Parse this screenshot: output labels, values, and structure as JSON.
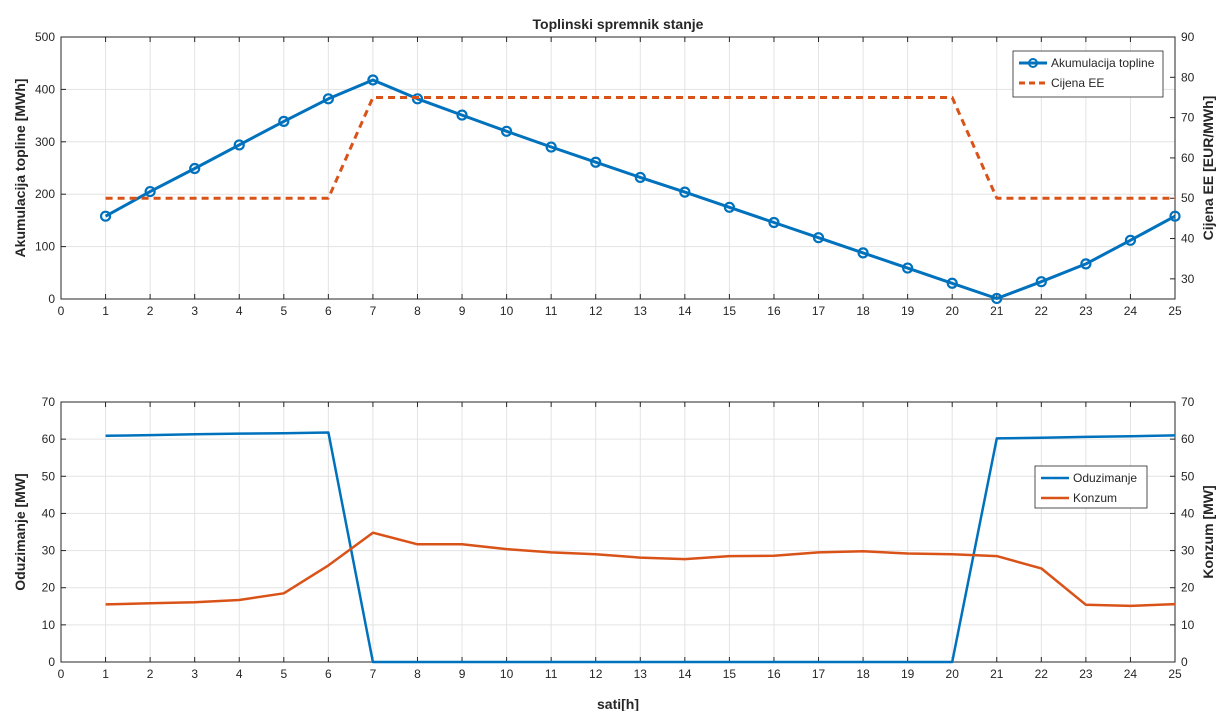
{
  "chart_data": [
    {
      "type": "line",
      "title": "Toplinski spremnik stanje",
      "xlabel": "",
      "ylabel": "Akumulacija topline [MWh]",
      "y2label": "Cijena EE [EUR/MWh]",
      "xlim": [
        0,
        25
      ],
      "ylim": [
        0,
        500
      ],
      "y2lim": [
        25,
        90
      ],
      "xticks": [
        0,
        1,
        2,
        3,
        4,
        5,
        6,
        7,
        8,
        9,
        10,
        11,
        12,
        13,
        14,
        15,
        16,
        17,
        18,
        19,
        20,
        21,
        22,
        23,
        24,
        25
      ],
      "yticks": [
        0,
        100,
        200,
        300,
        400,
        500
      ],
      "y2ticks": [
        30,
        40,
        50,
        60,
        70,
        80,
        90
      ],
      "grid": true,
      "legend_position": "top-right",
      "x": [
        1,
        2,
        3,
        4,
        5,
        6,
        7,
        8,
        9,
        10,
        11,
        12,
        13,
        14,
        15,
        16,
        17,
        18,
        19,
        20,
        21,
        22,
        23,
        24,
        25
      ],
      "series": [
        {
          "name": "Akumulacija topline",
          "axis": "left",
          "style": "solid-circle-markers",
          "color": "#0072BD",
          "values": [
            158,
            205,
            249,
            294,
            339,
            382,
            418,
            382,
            351,
            320,
            290,
            261,
            232,
            204,
            175,
            146,
            117,
            88,
            59,
            30,
            1,
            33,
            67,
            112,
            158
          ]
        },
        {
          "name": "Cijena EE",
          "axis": "right",
          "style": "dashed",
          "color": "#D95319",
          "values": [
            50,
            50,
            50,
            50,
            50,
            50,
            75,
            75,
            75,
            75,
            75,
            75,
            75,
            75,
            75,
            75,
            75,
            75,
            75,
            75,
            50,
            50,
            50,
            50,
            50
          ]
        }
      ]
    },
    {
      "type": "line",
      "title": "",
      "xlabel": "sati[h]",
      "ylabel": "Oduzimanje [MW]",
      "y2label": "Konzum [MW]",
      "xlim": [
        0,
        25
      ],
      "ylim": [
        0,
        70
      ],
      "y2lim": [
        0,
        70
      ],
      "xticks": [
        0,
        1,
        2,
        3,
        4,
        5,
        6,
        7,
        8,
        9,
        10,
        11,
        12,
        13,
        14,
        15,
        16,
        17,
        18,
        19,
        20,
        21,
        22,
        23,
        24,
        25
      ],
      "yticks": [
        0,
        10,
        20,
        30,
        40,
        50,
        60,
        70
      ],
      "y2ticks": [
        0,
        10,
        20,
        30,
        40,
        50,
        60,
        70
      ],
      "grid": true,
      "legend_position": "right",
      "x": [
        1,
        2,
        3,
        4,
        5,
        6,
        7,
        8,
        9,
        10,
        11,
        12,
        13,
        14,
        15,
        16,
        17,
        18,
        19,
        20,
        21,
        22,
        23,
        24,
        25
      ],
      "series": [
        {
          "name": "Oduzimanje",
          "axis": "left",
          "style": "solid",
          "color": "#0072BD",
          "values": [
            60.9,
            61.1,
            61.3,
            61.5,
            61.6,
            61.8,
            0,
            0,
            0,
            0,
            0,
            0,
            0,
            0,
            0,
            0,
            0,
            0,
            0,
            0,
            60.2,
            60.4,
            60.6,
            60.8,
            61.0
          ]
        },
        {
          "name": "Konzum",
          "axis": "right",
          "style": "solid",
          "color": "#D95319",
          "values": [
            15.5,
            15.8,
            16.1,
            16.7,
            18.5,
            26.0,
            34.8,
            31.7,
            31.7,
            30.4,
            29.5,
            29.0,
            28.1,
            27.7,
            28.5,
            28.6,
            29.5,
            29.8,
            29.2,
            29.0,
            28.5,
            25.2,
            15.4,
            15.1,
            15.6
          ]
        }
      ]
    }
  ]
}
